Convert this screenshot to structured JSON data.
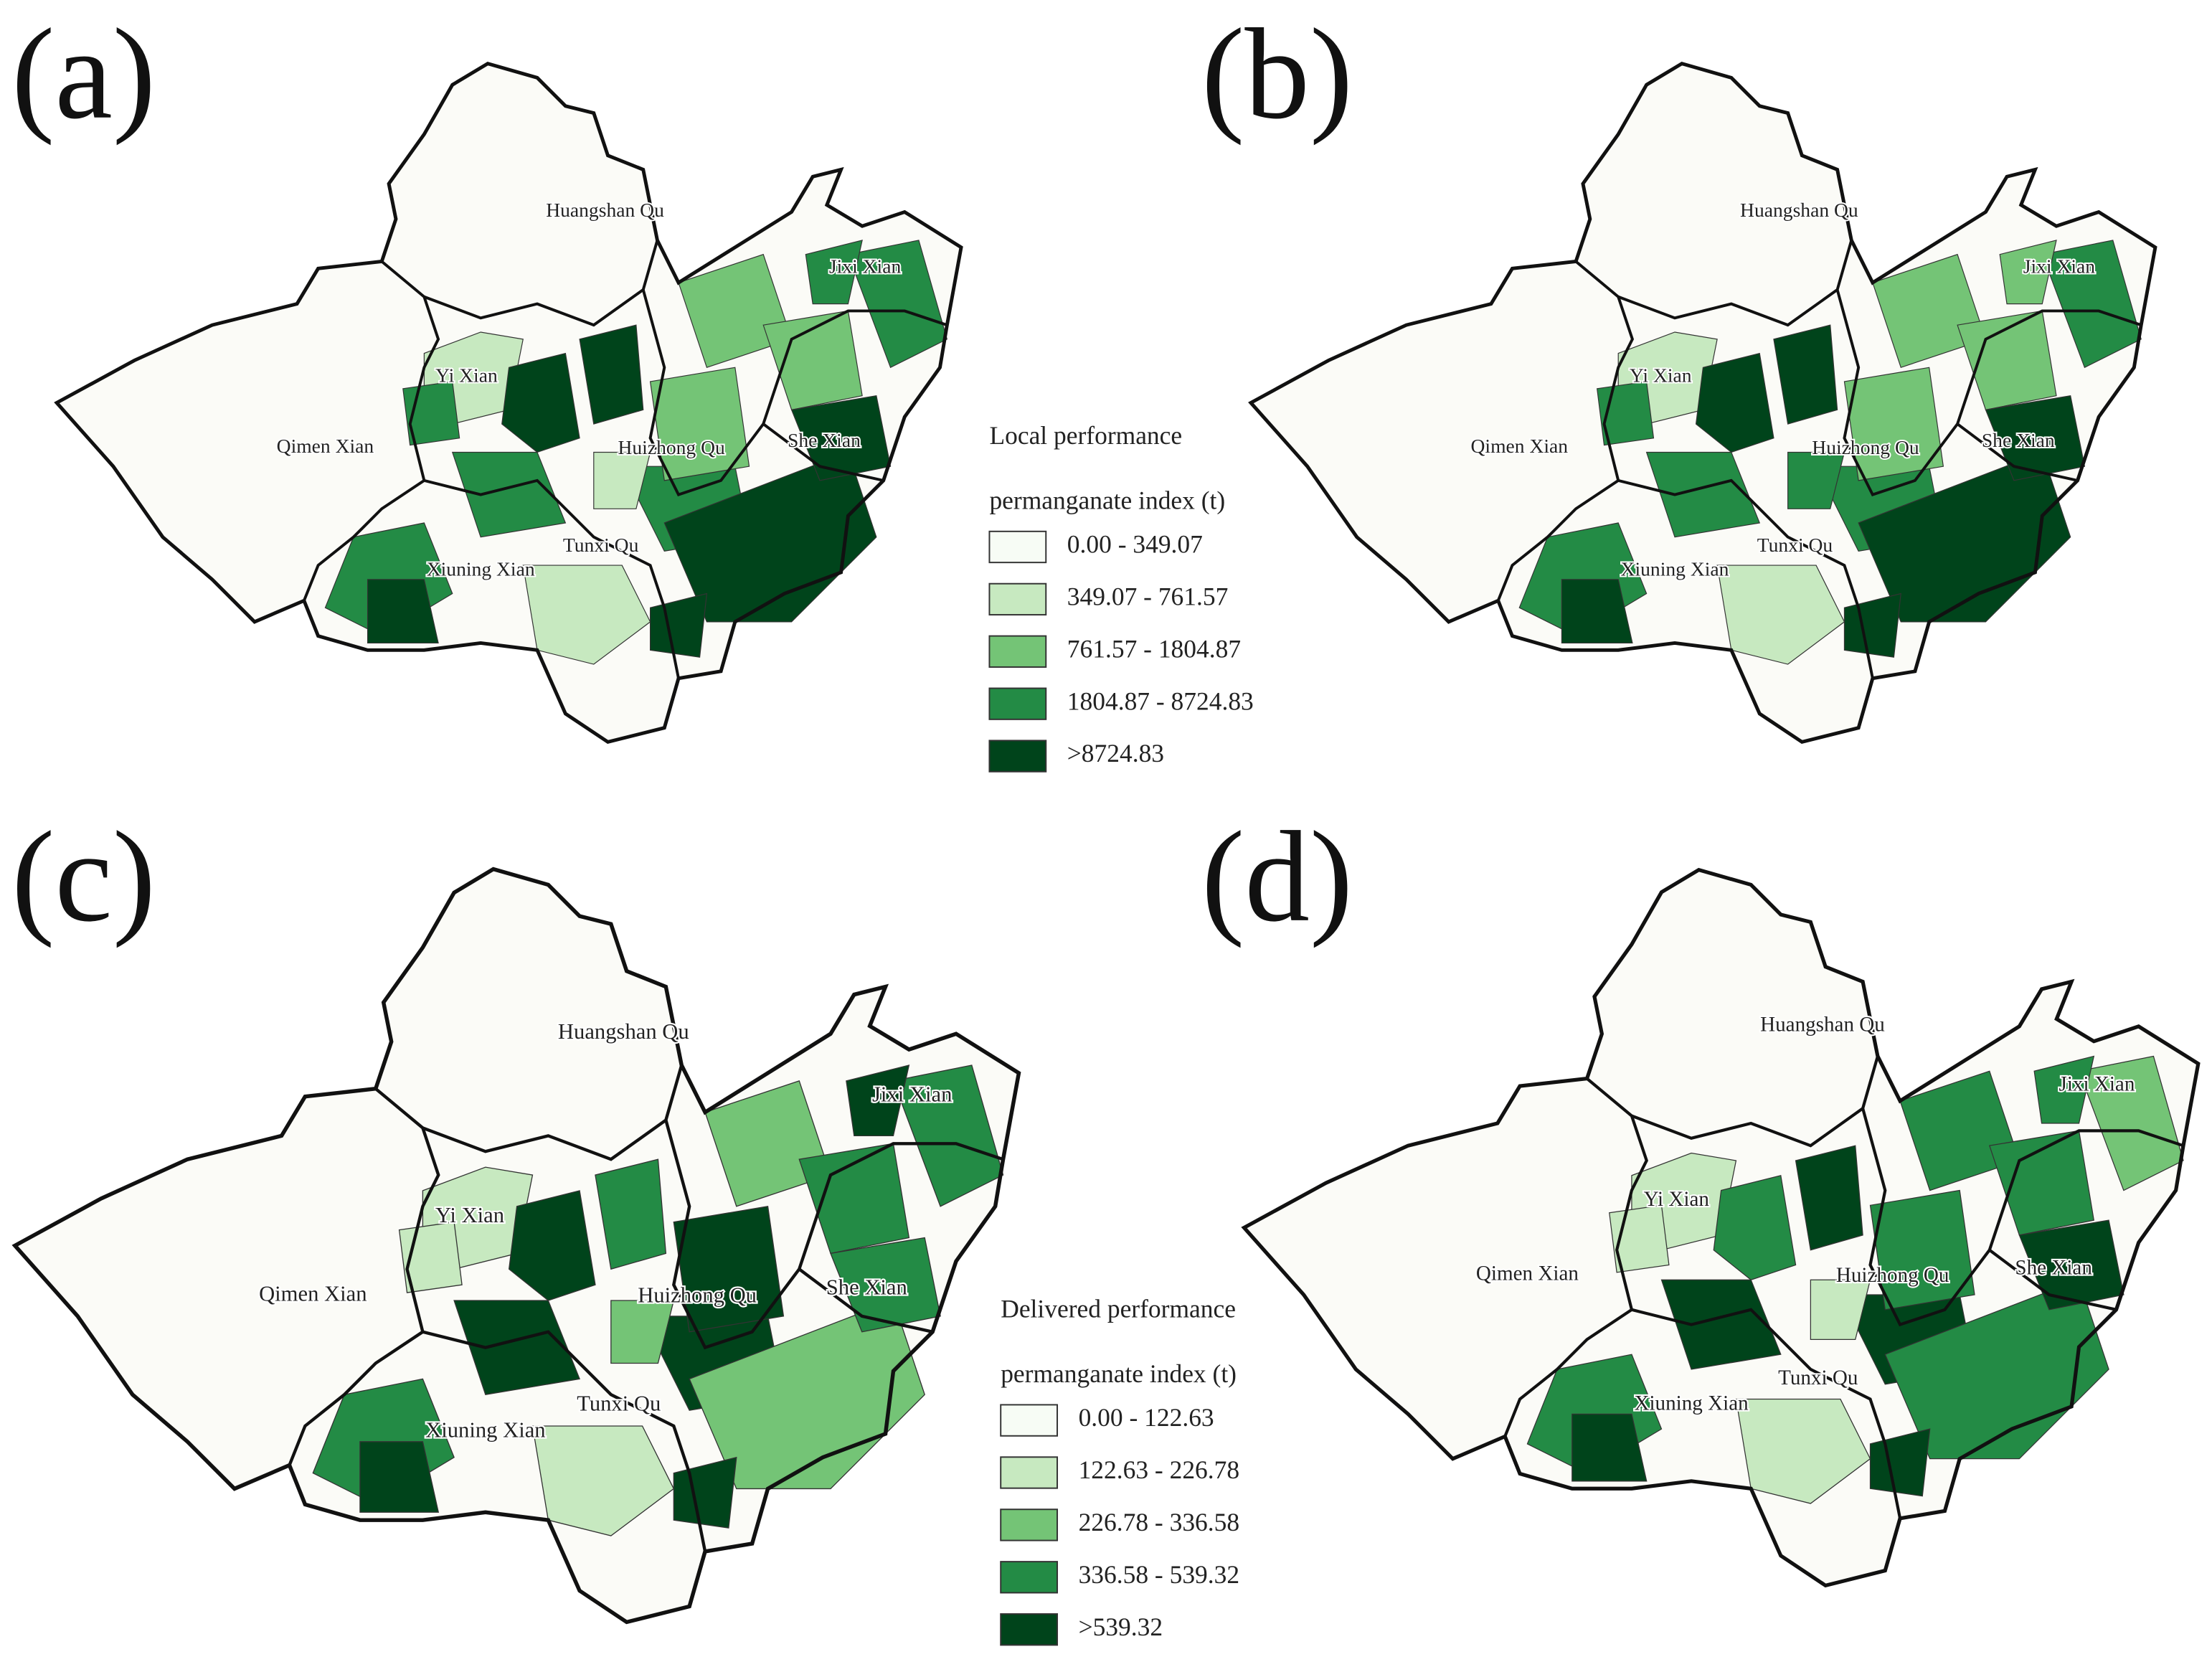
{
  "panels": [
    {
      "letter": "(a)",
      "places": [
        "Huangshan Qu",
        "Jixi Xian",
        "Yi Xian",
        "Qimen Xian",
        "Huizhong Qu",
        "She Xian",
        "Tunxi Qu",
        "Xiuning Xian"
      ]
    },
    {
      "letter": "(b)",
      "places": [
        "Huangshan Qu",
        "Jixi Xian",
        "Yi Xian",
        "Qimen Xian",
        "Huizhong Qu",
        "She Xian",
        "Tunxi Qu",
        "Xiuning Xian"
      ]
    },
    {
      "letter": "(c)",
      "places": [
        "Huangshan Qu",
        "Jixi Xian",
        "Yi Xian",
        "Qimen Xian",
        "Huizhong Qu",
        "She Xian",
        "Tunxi Qu",
        "Xiuning Xian"
      ]
    },
    {
      "letter": "(d)",
      "places": [
        "Huangshan Qu",
        "Jixi Xian",
        "Yi Xian",
        "Qimen Xian",
        "Huizhong Qu",
        "She Xian",
        "Tunxi Qu",
        "Xiuning Xian"
      ]
    }
  ],
  "legends": [
    {
      "title": "Local performance",
      "subtitle": "permanganate index (t)",
      "classes": [
        {
          "label": "0.00 - 349.07",
          "color": "#f7fcf5"
        },
        {
          "label": "349.07 - 761.57",
          "color": "#c7e9c0"
        },
        {
          "label": "761.57 - 1804.87",
          "color": "#74c476"
        },
        {
          "label": "1804.87 - 8724.83",
          "color": "#238b45"
        },
        {
          "label": ">8724.83",
          "color": "#00441b"
        }
      ]
    },
    {
      "title": "Delivered performance",
      "subtitle": "permanganate index (t)",
      "classes": [
        {
          "label": "0.00 - 122.63",
          "color": "#f7fcf5"
        },
        {
          "label": "122.63 - 226.78",
          "color": "#c7e9c0"
        },
        {
          "label": "226.78 - 336.58",
          "color": "#74c476"
        },
        {
          "label": "336.58 - 539.32",
          "color": "#238b45"
        },
        {
          "label": ">539.32",
          "color": "#00441b"
        }
      ]
    }
  ]
}
